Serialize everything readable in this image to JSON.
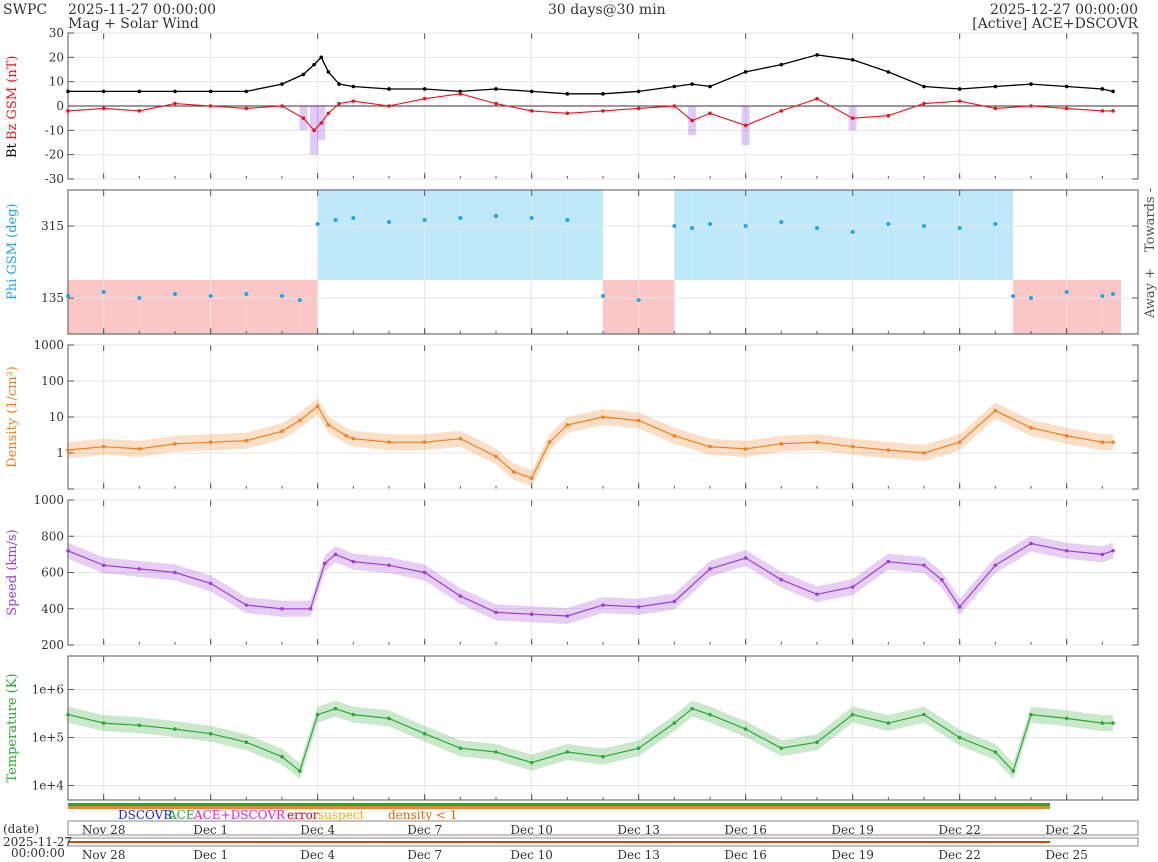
{
  "header": {
    "brand": "SWPC",
    "start_time": "2025-11-27 00:00:00",
    "end_time": "2025-12-27 00:00:00",
    "subtitle": "Mag + Solar Wind",
    "window": "30 days@30 min",
    "source": "[Active] ACE+DSCOVR"
  },
  "colors": {
    "bt": "#000000",
    "bz": "#e8141b",
    "bx": "#8a2be2",
    "by": "#1e9fe0",
    "phi": "#1ea7e1",
    "phi_towards_fill": "#bfe8f8",
    "phi_away_fill": "#fbc6c6",
    "density": "#f08020",
    "speed": "#9b3fd1",
    "temperature": "#2aa832",
    "dscovr": "#1d1de0",
    "ace": "#22aa22",
    "ace_dscovr": "#e020e0",
    "error": "#d00000",
    "suspect": "#e0b000",
    "density_lt1": "#e06a00"
  },
  "chart_data": [
    {
      "type": "line",
      "id": "mag",
      "ylabel_parts": [
        "Bt",
        "Bz GSM (nT)"
      ],
      "ylim": [
        -30,
        30
      ],
      "yticks": [
        30,
        20,
        10,
        0,
        -10,
        -20,
        -30
      ],
      "series": [
        {
          "name": "Bt",
          "x_days": [
            0,
            1,
            2,
            3,
            4,
            5,
            6,
            6.6,
            6.9,
            7.1,
            7.3,
            7.6,
            8,
            9,
            10,
            11,
            12,
            13,
            14,
            15,
            16,
            17,
            17.5,
            18,
            19,
            20,
            21,
            22,
            23,
            24,
            25,
            26,
            27,
            28,
            29,
            29.3
          ],
          "values": [
            6,
            6,
            6,
            6,
            6,
            6,
            9,
            13,
            17,
            20,
            14,
            9,
            8,
            7,
            7,
            6,
            7,
            6,
            5,
            5,
            6,
            8,
            9,
            8,
            14,
            17,
            21,
            19,
            14,
            8,
            7,
            8,
            9,
            8,
            7,
            6
          ]
        },
        {
          "name": "Bz GSM",
          "x_days": [
            0,
            1,
            2,
            3,
            4,
            5,
            6,
            6.6,
            6.9,
            7.1,
            7.3,
            7.6,
            8,
            9,
            10,
            11,
            12,
            13,
            14,
            15,
            16,
            17,
            17.5,
            18,
            19,
            20,
            21,
            22,
            23,
            24,
            25,
            26,
            27,
            28,
            29,
            29.3
          ],
          "values": [
            -2,
            -1,
            -2,
            1,
            0,
            -1,
            0,
            -5,
            -10,
            -7,
            -3,
            1,
            2,
            0,
            3,
            5,
            1,
            -2,
            -3,
            -2,
            -1,
            0,
            -6,
            -3,
            -8,
            -2,
            3,
            -5,
            -4,
            1,
            2,
            -1,
            0,
            -1,
            -2,
            -2
          ]
        }
      ]
    },
    {
      "type": "scatter",
      "id": "phi",
      "ylabel": "Phi GSM (deg)",
      "right_labels": [
        "Towards -",
        "Away +"
      ],
      "ylim": [
        45,
        405
      ],
      "yticks": [
        315,
        135
      ],
      "series": [
        {
          "name": "Phi GSM",
          "x_days": [
            0,
            1,
            2,
            3,
            4,
            5,
            6,
            6.5,
            7,
            7.5,
            8,
            9,
            10,
            11,
            12,
            13,
            14,
            15,
            16,
            17,
            17.5,
            18,
            19,
            20,
            21,
            22,
            23,
            24,
            25,
            26,
            26.5,
            27,
            28,
            29,
            29.3
          ],
          "values": [
            140,
            150,
            135,
            145,
            140,
            145,
            140,
            130,
            320,
            330,
            335,
            325,
            330,
            335,
            340,
            335,
            330,
            140,
            130,
            315,
            310,
            320,
            315,
            325,
            310,
            300,
            320,
            315,
            310,
            320,
            140,
            135,
            150,
            140,
            145
          ]
        }
      ]
    },
    {
      "type": "line",
      "id": "density",
      "ylabel": "Density (1/cm³)",
      "yscale": "log",
      "ylim": [
        0.1,
        1000
      ],
      "ytick_labels": [
        "1000",
        "100",
        "10",
        "1"
      ],
      "series": [
        {
          "name": "Density",
          "x_days": [
            0,
            1,
            2,
            3,
            4,
            5,
            6,
            6.5,
            7,
            7.3,
            7.8,
            8,
            9,
            10,
            11,
            12,
            12.5,
            13,
            13.5,
            14,
            15,
            16,
            17,
            18,
            19,
            20,
            21,
            22,
            23,
            24,
            25,
            26,
            27,
            28,
            29,
            29.3
          ],
          "values": [
            1.2,
            1.5,
            1.3,
            1.8,
            2,
            2.2,
            4,
            8,
            20,
            6,
            3,
            2.5,
            2,
            2,
            2.5,
            0.8,
            0.3,
            0.2,
            2,
            6,
            10,
            8,
            3,
            1.5,
            1.3,
            1.8,
            2,
            1.5,
            1.2,
            1,
            2,
            15,
            5,
            3,
            2,
            2
          ]
        }
      ]
    },
    {
      "type": "line",
      "id": "speed",
      "ylabel": "Speed (km/s)",
      "ylim": [
        200,
        1000
      ],
      "yticks": [
        1000,
        800,
        600,
        400,
        200
      ],
      "series": [
        {
          "name": "Speed",
          "x_days": [
            0,
            1,
            2,
            3,
            4,
            5,
            6,
            6.8,
            7.2,
            7.5,
            8,
            9,
            10,
            11,
            12,
            13,
            14,
            15,
            16,
            17,
            18,
            19,
            20,
            21,
            22,
            23,
            24,
            24.5,
            25,
            26,
            27,
            28,
            29,
            29.3
          ],
          "values": [
            720,
            640,
            620,
            600,
            540,
            420,
            400,
            400,
            650,
            700,
            660,
            640,
            600,
            470,
            380,
            370,
            360,
            420,
            410,
            440,
            620,
            680,
            560,
            480,
            520,
            660,
            640,
            560,
            410,
            640,
            760,
            720,
            700,
            720
          ]
        }
      ]
    },
    {
      "type": "line",
      "id": "temperature",
      "ylabel": "Temperature (K)",
      "yscale": "log",
      "ylim": [
        5000,
        5000000
      ],
      "ytick_labels": [
        "1e+6",
        "1e+5",
        "1e+4"
      ],
      "series": [
        {
          "name": "Temperature",
          "x_days": [
            0,
            1,
            2,
            3,
            4,
            5,
            6,
            6.5,
            7,
            7.5,
            8,
            9,
            10,
            11,
            12,
            13,
            14,
            15,
            16,
            17,
            17.5,
            18,
            19,
            20,
            21,
            22,
            23,
            24,
            25,
            26,
            26.5,
            27,
            28,
            29,
            29.3
          ],
          "values": [
            300000,
            200000,
            180000,
            150000,
            120000,
            80000,
            40000,
            20000,
            300000,
            400000,
            300000,
            250000,
            120000,
            60000,
            50000,
            30000,
            50000,
            40000,
            60000,
            200000,
            400000,
            300000,
            150000,
            60000,
            80000,
            300000,
            200000,
            300000,
            100000,
            50000,
            20000,
            300000,
            250000,
            200000,
            200000
          ]
        }
      ]
    }
  ],
  "legend": {
    "dscovr": "DSCOVR",
    "ace": "ACE",
    "ace_dscovr": "ACE+DSCOVR",
    "error": "error",
    "suspect": "suspect",
    "density_lt1": "density < 1"
  },
  "x_axis": {
    "ticks": [
      "Nov 28",
      "Dec 1",
      "Dec 4",
      "Dec 7",
      "Dec 10",
      "Dec 13",
      "Dec 16",
      "Dec 19",
      "Dec 22",
      "Dec 25"
    ],
    "tick_days": [
      1,
      4,
      7,
      10,
      13,
      16,
      19,
      22,
      25,
      28
    ],
    "range_days": [
      0,
      30
    ],
    "date_label": "(date)",
    "start_date": "2025-11-27",
    "start_clock": "00:00:00"
  }
}
